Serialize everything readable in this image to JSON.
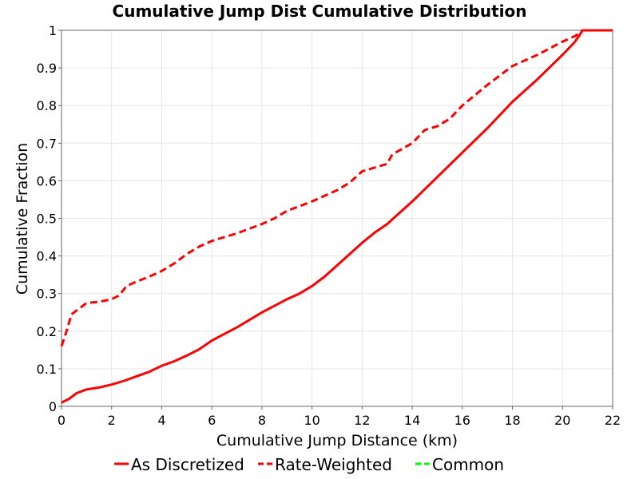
{
  "chart_data": {
    "type": "line",
    "title": "Cumulative Jump Dist Cumulative Distribution",
    "xlabel": "Cumulative Jump Distance (km)",
    "ylabel": "Cumulative Fraction",
    "xlim": [
      0,
      22
    ],
    "ylim": [
      0,
      1
    ],
    "x_ticks": [
      "0",
      "2",
      "4",
      "6",
      "8",
      "10",
      "12",
      "14",
      "16",
      "18",
      "20",
      "22"
    ],
    "y_ticks": [
      "0",
      "0.1",
      "0.2",
      "0.3",
      "0.4",
      "0.5",
      "0.6",
      "0.7",
      "0.8",
      "0.9",
      "1"
    ],
    "grid": true,
    "legend_position": "bottom",
    "series": [
      {
        "name": "As Discretized",
        "color": "#ff0000",
        "dash": "solid",
        "x": [
          0,
          0.3,
          0.6,
          1,
          1.5,
          2,
          2.5,
          3,
          3.5,
          4,
          4.5,
          5,
          5.5,
          6,
          7,
          8,
          9,
          9.5,
          10,
          10.5,
          11,
          11.5,
          12,
          12.5,
          13,
          13.5,
          14,
          15,
          16,
          17,
          18,
          19,
          20,
          20.5,
          20.8,
          21,
          22
        ],
        "y": [
          0.01,
          0.02,
          0.035,
          0.045,
          0.05,
          0.058,
          0.068,
          0.08,
          0.092,
          0.108,
          0.12,
          0.135,
          0.152,
          0.175,
          0.21,
          0.25,
          0.285,
          0.3,
          0.32,
          0.345,
          0.375,
          0.405,
          0.435,
          0.462,
          0.485,
          0.515,
          0.545,
          0.61,
          0.675,
          0.74,
          0.81,
          0.87,
          0.935,
          0.97,
          1.0,
          1.0,
          1.0
        ]
      },
      {
        "name": "Rate-Weighted",
        "color": "#ff0000",
        "dash": "dashed",
        "x": [
          0,
          0.2,
          0.4,
          0.7,
          1,
          1.5,
          2,
          2.3,
          2.6,
          3,
          3.5,
          4,
          4.5,
          5,
          5.5,
          6,
          7,
          8,
          8.5,
          9,
          10,
          11,
          11.5,
          12,
          12.5,
          13,
          13.2,
          14,
          14.5,
          15,
          15.5,
          16,
          17,
          18,
          19,
          20,
          20.5,
          20.8,
          22
        ],
        "y": [
          0.16,
          0.2,
          0.245,
          0.26,
          0.275,
          0.278,
          0.285,
          0.295,
          0.32,
          0.332,
          0.345,
          0.36,
          0.38,
          0.405,
          0.425,
          0.44,
          0.46,
          0.485,
          0.5,
          0.52,
          0.545,
          0.575,
          0.595,
          0.625,
          0.635,
          0.645,
          0.67,
          0.7,
          0.735,
          0.745,
          0.765,
          0.8,
          0.855,
          0.905,
          0.935,
          0.97,
          0.985,
          1.0,
          1.0
        ]
      },
      {
        "name": "Common",
        "color": "#00ff00",
        "dash": "dashed",
        "x": [],
        "y": []
      }
    ]
  }
}
